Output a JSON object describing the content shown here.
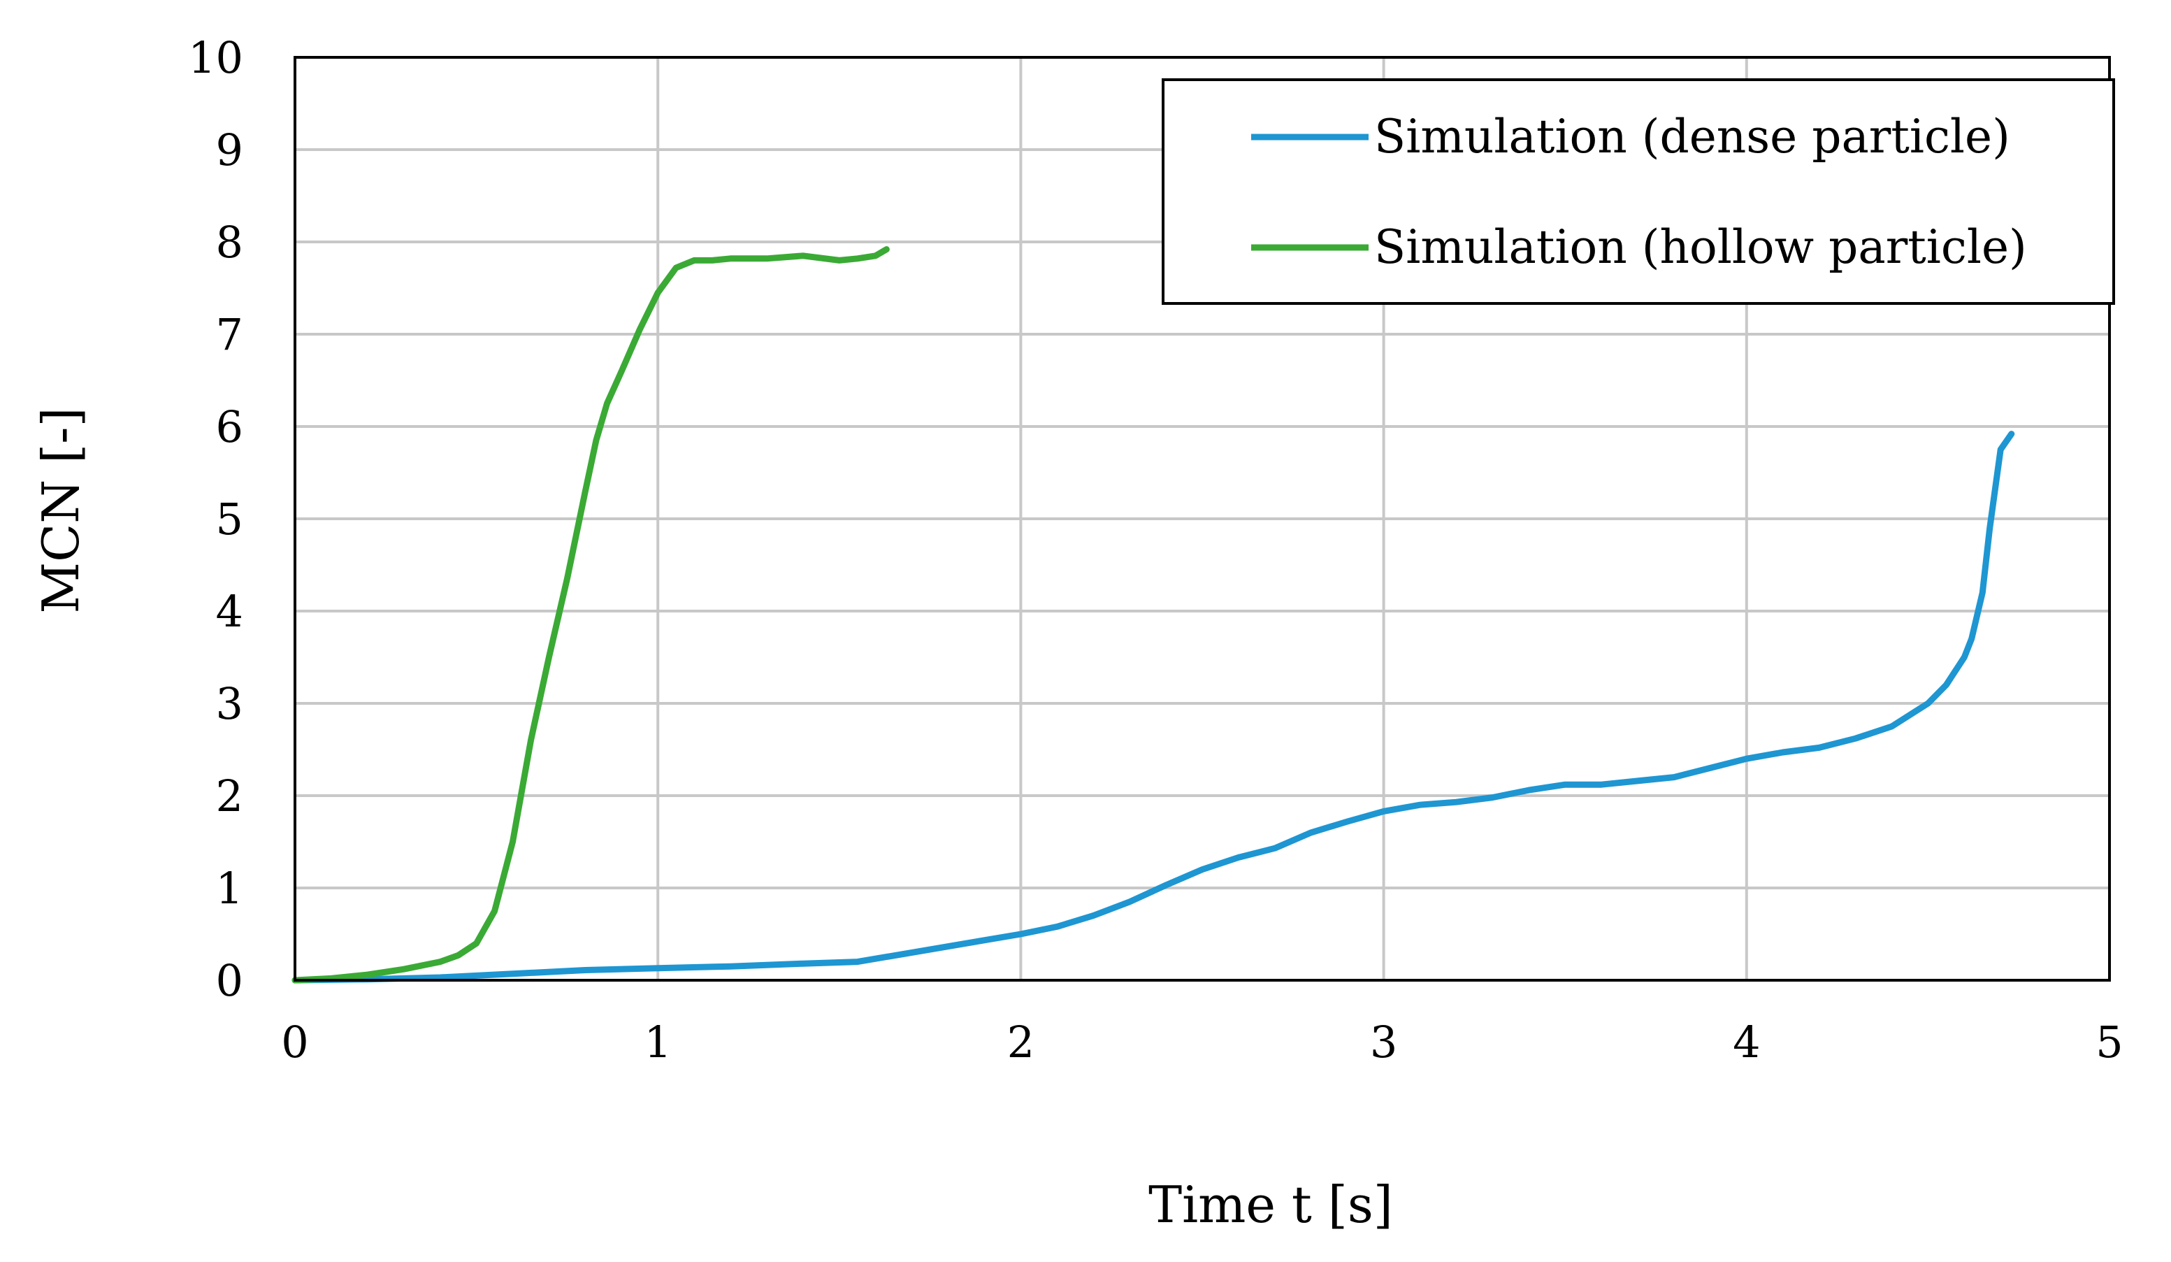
{
  "chart_data": {
    "type": "line",
    "title": "",
    "xlabel": "Time t [s]",
    "ylabel": "MCN [-]",
    "xlim": [
      0,
      5
    ],
    "ylim": [
      0,
      10
    ],
    "xticks": [
      "0",
      "1",
      "2",
      "3",
      "4",
      "5"
    ],
    "yticks": [
      "0",
      "1",
      "2",
      "3",
      "4",
      "5",
      "6",
      "7",
      "8",
      "9",
      "10"
    ],
    "grid": true,
    "legend_position": "top-right",
    "series": [
      {
        "name": "Simulation (dense particle)",
        "color": "#1e96d2",
        "x": [
          0,
          0.2,
          0.4,
          0.6,
          0.8,
          1.0,
          1.2,
          1.4,
          1.55,
          1.7,
          1.85,
          2.0,
          2.1,
          2.2,
          2.3,
          2.4,
          2.5,
          2.6,
          2.7,
          2.8,
          2.9,
          3.0,
          3.1,
          3.2,
          3.3,
          3.4,
          3.5,
          3.6,
          3.7,
          3.8,
          3.9,
          4.0,
          4.1,
          4.2,
          4.3,
          4.4,
          4.5,
          4.55,
          4.6,
          4.62,
          4.65,
          4.67,
          4.7,
          4.73
        ],
        "y": [
          0,
          0.01,
          0.03,
          0.07,
          0.11,
          0.13,
          0.15,
          0.18,
          0.2,
          0.3,
          0.4,
          0.5,
          0.58,
          0.7,
          0.85,
          1.03,
          1.2,
          1.33,
          1.43,
          1.6,
          1.72,
          1.83,
          1.9,
          1.93,
          1.98,
          2.06,
          2.12,
          2.12,
          2.16,
          2.2,
          2.3,
          2.4,
          2.47,
          2.52,
          2.62,
          2.75,
          3.0,
          3.2,
          3.5,
          3.7,
          4.2,
          4.9,
          5.75,
          5.92
        ]
      },
      {
        "name": "Simulation (hollow particle)",
        "color": "#3aaa35",
        "x": [
          0,
          0.1,
          0.2,
          0.3,
          0.4,
          0.45,
          0.5,
          0.55,
          0.6,
          0.65,
          0.7,
          0.75,
          0.8,
          0.83,
          0.86,
          0.9,
          0.95,
          1.0,
          1.05,
          1.1,
          1.15,
          1.2,
          1.3,
          1.4,
          1.5,
          1.55,
          1.6,
          1.63
        ],
        "y": [
          0,
          0.02,
          0.06,
          0.12,
          0.2,
          0.27,
          0.4,
          0.75,
          1.5,
          2.6,
          3.5,
          4.35,
          5.3,
          5.85,
          6.25,
          6.6,
          7.05,
          7.45,
          7.72,
          7.8,
          7.8,
          7.82,
          7.82,
          7.85,
          7.8,
          7.82,
          7.85,
          7.92
        ]
      }
    ]
  }
}
